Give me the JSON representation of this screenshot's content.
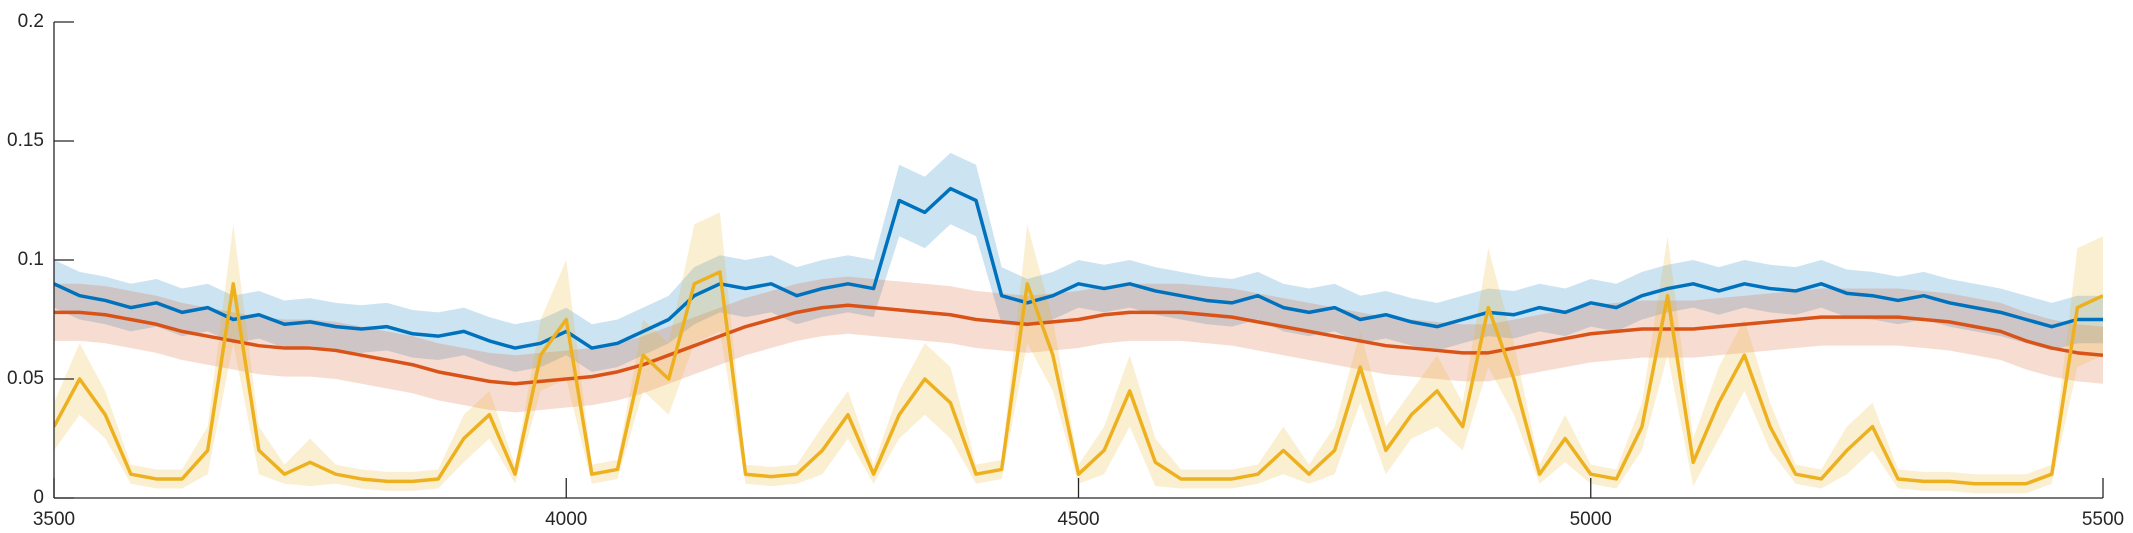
{
  "chart_data": {
    "type": "line",
    "x": [
      3500,
      3525,
      3550,
      3575,
      3600,
      3625,
      3650,
      3675,
      3700,
      3725,
      3750,
      3775,
      3800,
      3825,
      3850,
      3875,
      3900,
      3925,
      3950,
      3975,
      4000,
      4025,
      4050,
      4075,
      4100,
      4125,
      4150,
      4175,
      4200,
      4225,
      4250,
      4275,
      4300,
      4325,
      4350,
      4375,
      4400,
      4425,
      4450,
      4475,
      4500,
      4525,
      4550,
      4575,
      4600,
      4625,
      4650,
      4675,
      4700,
      4725,
      4750,
      4775,
      4800,
      4825,
      4850,
      4875,
      4900,
      4925,
      4950,
      4975,
      5000,
      5025,
      5050,
      5075,
      5100,
      5125,
      5150,
      5175,
      5200,
      5225,
      5250,
      5275,
      5300,
      5325,
      5350,
      5375,
      5400,
      5425,
      5450,
      5475,
      5500
    ],
    "series": [
      {
        "color": "#0072bd",
        "values": [
          0.09,
          0.085,
          0.083,
          0.08,
          0.082,
          0.078,
          0.08,
          0.075,
          0.077,
          0.073,
          0.074,
          0.072,
          0.071,
          0.072,
          0.069,
          0.068,
          0.07,
          0.066,
          0.063,
          0.065,
          0.07,
          0.063,
          0.065,
          0.07,
          0.075,
          0.085,
          0.09,
          0.088,
          0.09,
          0.085,
          0.088,
          0.09,
          0.088,
          0.125,
          0.12,
          0.13,
          0.125,
          0.085,
          0.082,
          0.085,
          0.09,
          0.088,
          0.09,
          0.087,
          0.085,
          0.083,
          0.082,
          0.085,
          0.08,
          0.078,
          0.08,
          0.075,
          0.077,
          0.074,
          0.072,
          0.075,
          0.078,
          0.077,
          0.08,
          0.078,
          0.082,
          0.08,
          0.085,
          0.088,
          0.09,
          0.087,
          0.09,
          0.088,
          0.087,
          0.09,
          0.086,
          0.085,
          0.083,
          0.085,
          0.082,
          0.08,
          0.078,
          0.075,
          0.072,
          0.075,
          0.075
        ],
        "errors": [
          0.01,
          0.01,
          0.01,
          0.01,
          0.01,
          0.01,
          0.01,
          0.01,
          0.01,
          0.01,
          0.01,
          0.01,
          0.01,
          0.01,
          0.01,
          0.01,
          0.01,
          0.01,
          0.01,
          0.01,
          0.01,
          0.01,
          0.01,
          0.01,
          0.01,
          0.012,
          0.012,
          0.012,
          0.012,
          0.012,
          0.012,
          0.012,
          0.012,
          0.015,
          0.015,
          0.015,
          0.015,
          0.012,
          0.01,
          0.01,
          0.01,
          0.01,
          0.01,
          0.01,
          0.01,
          0.01,
          0.01,
          0.01,
          0.01,
          0.01,
          0.01,
          0.01,
          0.01,
          0.01,
          0.01,
          0.01,
          0.01,
          0.01,
          0.01,
          0.01,
          0.01,
          0.01,
          0.01,
          0.01,
          0.01,
          0.01,
          0.01,
          0.01,
          0.01,
          0.01,
          0.01,
          0.01,
          0.01,
          0.01,
          0.01,
          0.01,
          0.01,
          0.01,
          0.01,
          0.01,
          0.01
        ]
      },
      {
        "color": "#d95319",
        "values": [
          0.078,
          0.078,
          0.077,
          0.075,
          0.073,
          0.07,
          0.068,
          0.066,
          0.064,
          0.063,
          0.063,
          0.062,
          0.06,
          0.058,
          0.056,
          0.053,
          0.051,
          0.049,
          0.048,
          0.049,
          0.05,
          0.051,
          0.053,
          0.056,
          0.06,
          0.064,
          0.068,
          0.072,
          0.075,
          0.078,
          0.08,
          0.081,
          0.08,
          0.079,
          0.078,
          0.077,
          0.075,
          0.074,
          0.073,
          0.074,
          0.075,
          0.077,
          0.078,
          0.078,
          0.078,
          0.077,
          0.076,
          0.074,
          0.072,
          0.07,
          0.068,
          0.066,
          0.064,
          0.063,
          0.062,
          0.061,
          0.061,
          0.063,
          0.065,
          0.067,
          0.069,
          0.07,
          0.071,
          0.071,
          0.071,
          0.072,
          0.073,
          0.074,
          0.075,
          0.076,
          0.076,
          0.076,
          0.076,
          0.075,
          0.074,
          0.072,
          0.07,
          0.066,
          0.063,
          0.061,
          0.06
        ],
        "errors": [
          0.012,
          0.012,
          0.012,
          0.012,
          0.012,
          0.012,
          0.012,
          0.012,
          0.012,
          0.012,
          0.012,
          0.012,
          0.012,
          0.012,
          0.012,
          0.012,
          0.012,
          0.012,
          0.012,
          0.012,
          0.012,
          0.012,
          0.012,
          0.012,
          0.012,
          0.012,
          0.012,
          0.012,
          0.012,
          0.012,
          0.012,
          0.012,
          0.012,
          0.012,
          0.012,
          0.012,
          0.012,
          0.012,
          0.012,
          0.012,
          0.012,
          0.012,
          0.012,
          0.012,
          0.012,
          0.012,
          0.012,
          0.012,
          0.012,
          0.012,
          0.012,
          0.012,
          0.012,
          0.012,
          0.012,
          0.012,
          0.012,
          0.012,
          0.012,
          0.012,
          0.012,
          0.012,
          0.012,
          0.012,
          0.012,
          0.012,
          0.012,
          0.012,
          0.012,
          0.012,
          0.012,
          0.012,
          0.012,
          0.012,
          0.012,
          0.012,
          0.012,
          0.012,
          0.012,
          0.012,
          0.012
        ]
      },
      {
        "color": "#edb120",
        "values": [
          0.03,
          0.05,
          0.035,
          0.01,
          0.008,
          0.008,
          0.02,
          0.09,
          0.02,
          0.01,
          0.015,
          0.01,
          0.008,
          0.007,
          0.007,
          0.008,
          0.025,
          0.035,
          0.01,
          0.06,
          0.075,
          0.01,
          0.012,
          0.06,
          0.05,
          0.09,
          0.095,
          0.01,
          0.009,
          0.01,
          0.02,
          0.035,
          0.01,
          0.035,
          0.05,
          0.04,
          0.01,
          0.012,
          0.09,
          0.06,
          0.01,
          0.02,
          0.045,
          0.015,
          0.008,
          0.008,
          0.008,
          0.01,
          0.02,
          0.01,
          0.02,
          0.055,
          0.02,
          0.035,
          0.045,
          0.03,
          0.08,
          0.05,
          0.01,
          0.025,
          0.01,
          0.008,
          0.03,
          0.085,
          0.015,
          0.04,
          0.06,
          0.03,
          0.01,
          0.008,
          0.02,
          0.03,
          0.008,
          0.007,
          0.007,
          0.006,
          0.006,
          0.006,
          0.01,
          0.08,
          0.085
        ],
        "errors": [
          0.01,
          0.015,
          0.01,
          0.004,
          0.004,
          0.004,
          0.01,
          0.025,
          0.01,
          0.004,
          0.01,
          0.004,
          0.004,
          0.004,
          0.004,
          0.004,
          0.01,
          0.01,
          0.004,
          0.015,
          0.025,
          0.004,
          0.004,
          0.015,
          0.015,
          0.025,
          0.025,
          0.004,
          0.004,
          0.004,
          0.01,
          0.01,
          0.004,
          0.01,
          0.015,
          0.015,
          0.004,
          0.004,
          0.025,
          0.015,
          0.004,
          0.01,
          0.015,
          0.01,
          0.004,
          0.004,
          0.004,
          0.004,
          0.01,
          0.004,
          0.01,
          0.015,
          0.01,
          0.01,
          0.015,
          0.01,
          0.025,
          0.015,
          0.004,
          0.01,
          0.004,
          0.004,
          0.01,
          0.025,
          0.01,
          0.015,
          0.015,
          0.01,
          0.004,
          0.004,
          0.01,
          0.01,
          0.004,
          0.004,
          0.004,
          0.004,
          0.004,
          0.004,
          0.004,
          0.025,
          0.025
        ]
      }
    ],
    "xlim": [
      3500,
      5500
    ],
    "xticks": [
      3500,
      4000,
      4500,
      5000,
      5500
    ],
    "ylim": [
      0,
      0.2
    ],
    "yticks": [
      0,
      0.05,
      0.1,
      0.15,
      0.2
    ]
  }
}
